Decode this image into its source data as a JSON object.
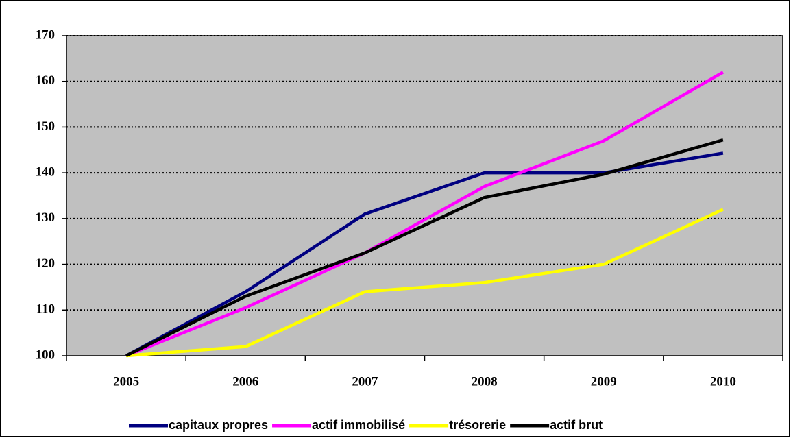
{
  "chart_data": {
    "type": "line",
    "categories": [
      "2005",
      "2006",
      "2007",
      "2008",
      "2009",
      "2010"
    ],
    "series": [
      {
        "name": "capitaux propres",
        "color": "#000080",
        "values": [
          100,
          114,
          131,
          140,
          140,
          144.3
        ]
      },
      {
        "name": "actif immobilisé",
        "color": "#ff00ff",
        "values": [
          100,
          110.5,
          122.5,
          137,
          147,
          162
        ]
      },
      {
        "name": "trésorerie",
        "color": "#ffff00",
        "values": [
          100,
          102,
          114,
          116,
          120,
          132
        ]
      },
      {
        "name": "actif brut",
        "color": "#000000",
        "values": [
          100,
          113,
          122.5,
          134.6,
          139.7,
          147.2
        ]
      }
    ],
    "ylim": [
      100,
      170
    ],
    "yticks": [
      100,
      110,
      120,
      130,
      140,
      150,
      160,
      170
    ],
    "grid": true,
    "legend": "bottom"
  }
}
